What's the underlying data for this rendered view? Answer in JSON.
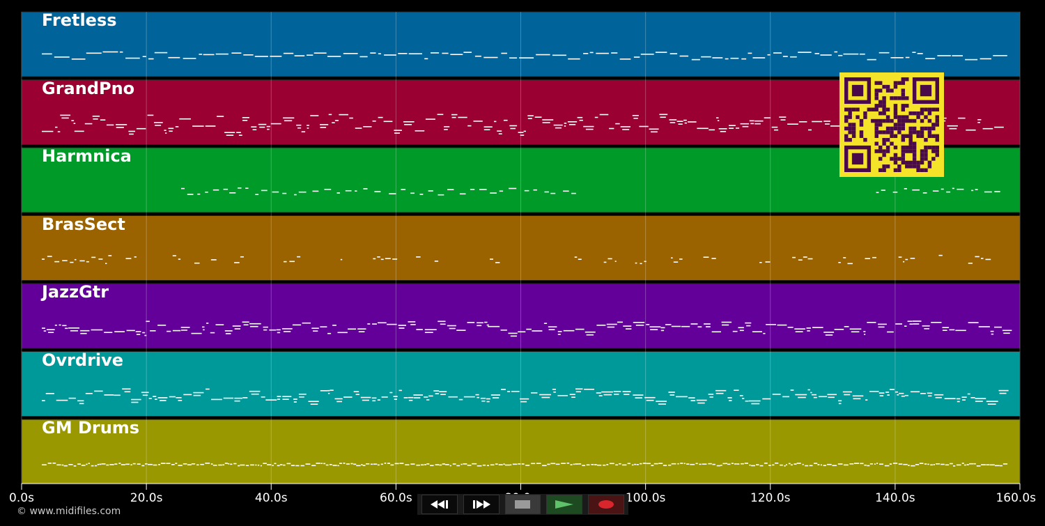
{
  "tracks": [
    {
      "name": "Fretless",
      "color": "#00649a",
      "pattern": "melody"
    },
    {
      "name": "GrandPno",
      "color": "#9a0031",
      "pattern": "piano"
    },
    {
      "name": "Harmnica",
      "color": "#009a29",
      "pattern": "sparse"
    },
    {
      "name": "BrasSect",
      "color": "#9a6300",
      "pattern": "brass"
    },
    {
      "name": "JazzGtr",
      "color": "#63009a",
      "pattern": "guitar"
    },
    {
      "name": "Ovrdrive",
      "color": "#00999a",
      "pattern": "guitar"
    },
    {
      "name": "GM Drums",
      "color": "#999800",
      "pattern": "drums"
    }
  ],
  "timeline": {
    "max_seconds": 160,
    "ticks": [
      "0.0s",
      "20.0s",
      "40.0s",
      "60.0s",
      "80.0s",
      "100.0s",
      "120.0s",
      "140.0s",
      "160.0s"
    ]
  },
  "transport": {
    "rewind": "rewind-icon",
    "fast_forward": "fast-forward-icon",
    "stop": "stop-icon",
    "play": "play-icon",
    "record": "record-icon"
  },
  "copyright": "© www.midifiles.com",
  "qr_colors": {
    "fg": "#4a0a4a",
    "bg": "#f5e32a"
  }
}
